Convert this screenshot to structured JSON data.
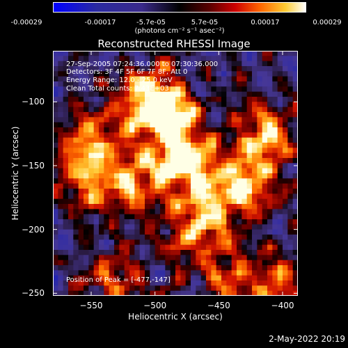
{
  "chart_data": {
    "type": "heatmap",
    "title": "Reconstructed RHESSI Image",
    "xlabel": "Heliocentric X (arcsec)",
    "ylabel": "Heliocentric Y (arcsec)",
    "xlim": [
      -580,
      -388
    ],
    "ylim": [
      -252,
      -60
    ],
    "x_ticks": [
      -550,
      -500,
      -450,
      -400
    ],
    "y_ticks": [
      -100,
      -150,
      -200,
      -250
    ],
    "colorbar": {
      "ticks": [
        "-0.00029",
        "-0.00017",
        "-5.7e-05",
        "5.7e-05",
        "0.00017",
        "0.00029"
      ],
      "unit": "(photons cm⁻² s⁻¹ asec⁻²)",
      "range": [
        -0.00029,
        0.00029
      ]
    },
    "annotations": [
      "27-Sep-2005 07:24:36.000 to 07:30:36.000",
      "Detectors: 3F 4F 5F 6F 7F 8F, Att 0",
      "Energy Range: 12.0 - 25.0 keV",
      "Clean     Total counts: 7.43E+03"
    ],
    "peak_label": "Position of Peak = [-477,-147]",
    "peak_position": [
      -477,
      -147
    ],
    "bright_regions": [
      {
        "x": -477,
        "y": -147,
        "intensity": 1.0
      },
      {
        "x": -490,
        "y": -110,
        "intensity": 0.85
      },
      {
        "x": -505,
        "y": -95,
        "intensity": 0.75
      },
      {
        "x": -430,
        "y": -165,
        "intensity": 0.9
      },
      {
        "x": -410,
        "y": -125,
        "intensity": 0.8
      },
      {
        "x": -545,
        "y": -130,
        "intensity": 0.7
      },
      {
        "x": -560,
        "y": -160,
        "intensity": 0.55
      },
      {
        "x": -520,
        "y": -165,
        "intensity": 0.65
      },
      {
        "x": -460,
        "y": -185,
        "intensity": 0.6
      },
      {
        "x": -470,
        "y": -210,
        "intensity": 0.5
      },
      {
        "x": -535,
        "y": -240,
        "intensity": 0.6
      },
      {
        "x": -440,
        "y": -245,
        "intensity": 0.55
      },
      {
        "x": -400,
        "y": -240,
        "intensity": 0.45
      }
    ]
  },
  "timestamp": "2-May-2022 20:19"
}
